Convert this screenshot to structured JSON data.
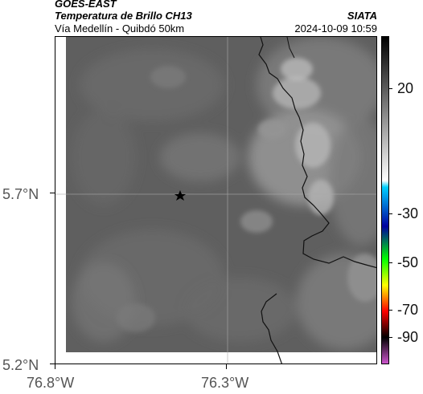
{
  "header": {
    "satellite": "GOES-EAST",
    "product": "Temperatura de Brillo CH13",
    "org": "SIATA",
    "region": "Vía Medellín - Quibdó 50km",
    "datetime": "2024-10-09 10:59"
  },
  "map": {
    "lat_labels": [
      "5.7°N",
      "5.2°N"
    ],
    "lon_labels": [
      "76.8°W",
      "76.3°W"
    ],
    "marker_icon": "star-icon",
    "field_colors": [
      "#5f5f5f",
      "#6a6a6a",
      "#7b7b7b",
      "#949494",
      "#b4b4b4",
      "#cfcfcf"
    ]
  },
  "colorbar": {
    "labels": [
      "20",
      "-30",
      "-50",
      "-70",
      "-90"
    ],
    "colors": [
      "#000000",
      "#ffffff",
      "#00d0ff",
      "#0000a0",
      "#00ff00",
      "#ffff00",
      "#ff0000",
      "#000000",
      "#cc55cc"
    ]
  }
}
